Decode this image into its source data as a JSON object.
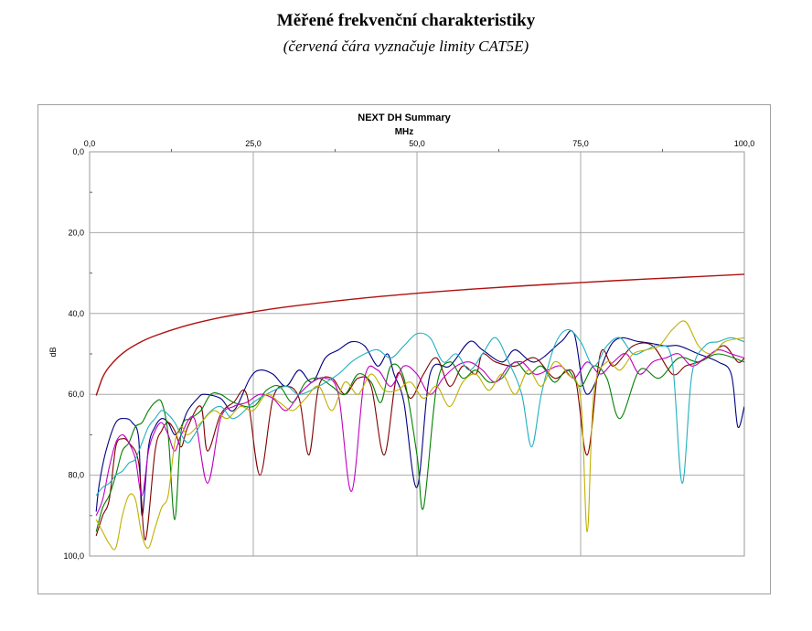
{
  "document": {
    "title": "Měřené frekvenční charakteristiky",
    "subtitle": "(červená čára vyznačuje limity CAT5E)"
  },
  "chart_data": {
    "type": "line",
    "title": "NEXT DH Summary",
    "xlabel": "MHz",
    "ylabel": "dB",
    "xlim": [
      0,
      100
    ],
    "ylim": [
      0,
      100
    ],
    "y_inverted": true,
    "x_axis_position": "top",
    "grid": true,
    "legend": "none",
    "x_ticks": [
      "0,0",
      "25,0",
      "50,0",
      "75,0",
      "100,0"
    ],
    "y_ticks": [
      "0,0",
      "20,0",
      "40,0",
      "60,0",
      "80,0",
      "100,0"
    ],
    "limit_line": {
      "color": "#b01010",
      "x": [
        1,
        2,
        3,
        5,
        7.5,
        10,
        15,
        20,
        25,
        30,
        40,
        50,
        60,
        70,
        80,
        90,
        100
      ],
      "y": [
        60.3,
        55.8,
        53.2,
        49.9,
        47.3,
        45.5,
        42.9,
        41.0,
        39.6,
        38.4,
        36.5,
        35.0,
        33.8,
        32.8,
        31.9,
        31.1,
        30.3
      ]
    },
    "series": [
      {
        "color": "#000080",
        "x": [
          1,
          1.5,
          2.5,
          4,
          5.5,
          6.5,
          7.5,
          8,
          9,
          10,
          11,
          12,
          13,
          14,
          15,
          16.5,
          17.5,
          20,
          22,
          24.5,
          26,
          28,
          30,
          32,
          34,
          36,
          38,
          40,
          42,
          44,
          45.5,
          46.5,
          48,
          50,
          52,
          55,
          58,
          60,
          63,
          65,
          68,
          72,
          74,
          76,
          80,
          84,
          88,
          90,
          93,
          96,
          98,
          99,
          100
        ],
        "y": [
          89,
          82,
          74,
          67,
          66,
          67,
          71,
          90,
          73,
          68,
          66,
          67,
          70,
          68,
          64,
          61,
          60,
          61,
          64,
          56,
          54,
          55,
          58,
          54,
          57,
          51,
          49,
          47,
          48,
          53,
          50,
          55,
          62,
          83,
          55,
          53,
          47,
          49,
          52,
          49,
          52,
          47,
          45,
          60,
          47,
          47,
          48,
          48,
          50,
          52,
          55,
          68,
          63
        ]
      },
      {
        "color": "#800000",
        "x": [
          1,
          2,
          3,
          4,
          5,
          6,
          7.5,
          8.5,
          10,
          11,
          12,
          13,
          14,
          15,
          17,
          18,
          20,
          22,
          24,
          26,
          28,
          30,
          32,
          33.5,
          35,
          37,
          39,
          41,
          43,
          45,
          47,
          49,
          51,
          53,
          55,
          57,
          59,
          60,
          62,
          65,
          68,
          71,
          74,
          76,
          78,
          80,
          83,
          86,
          89,
          91,
          93,
          95,
          97,
          99,
          100
        ],
        "y": [
          95,
          90,
          86,
          73,
          71,
          72,
          77,
          96,
          74,
          69,
          67,
          69,
          73,
          68,
          63,
          74,
          65,
          62,
          60,
          80,
          61,
          58,
          61,
          75,
          58,
          56,
          60,
          56,
          58,
          75,
          55,
          61,
          55,
          51,
          58,
          53,
          55,
          50,
          52,
          53,
          51,
          56,
          55,
          75,
          50,
          53,
          48,
          48,
          55,
          53,
          52,
          50,
          48,
          52,
          51
        ]
      },
      {
        "color": "#008000",
        "x": [
          1,
          2,
          3,
          4,
          5,
          6,
          7,
          8,
          9,
          10,
          11,
          12,
          13,
          14,
          15.5,
          17,
          18.5,
          20,
          22,
          25,
          27,
          29,
          31,
          33,
          35,
          37,
          39,
          41,
          43,
          44.5,
          46,
          48,
          50,
          51,
          53,
          55,
          57,
          59,
          61,
          63,
          65,
          67,
          69,
          71,
          73,
          75,
          77,
          79,
          81,
          84,
          87,
          90,
          93,
          96,
          100
        ],
        "y": [
          94,
          88,
          85,
          80,
          74,
          72,
          68,
          67,
          64,
          62,
          62,
          70,
          91,
          69,
          66,
          64,
          60,
          60,
          62,
          63,
          59,
          58,
          62,
          57,
          56,
          58,
          60,
          55,
          57,
          62,
          53,
          56,
          75,
          88,
          58,
          52,
          56,
          54,
          57,
          56,
          52,
          55,
          53,
          57,
          54,
          58,
          53,
          56,
          66,
          54,
          56,
          51,
          52,
          50,
          52
        ]
      },
      {
        "color": "#c000c0",
        "x": [
          1,
          2,
          3,
          4,
          5,
          6,
          7,
          8,
          9,
          10,
          11,
          12,
          13,
          14,
          16,
          18,
          20,
          22,
          24,
          26,
          28,
          30,
          32,
          34,
          36,
          38,
          40,
          42,
          44,
          46,
          48,
          50,
          52,
          54,
          56,
          58,
          60,
          62,
          64,
          66,
          68,
          70,
          72,
          74,
          76,
          78,
          80,
          82,
          84,
          86,
          88,
          90,
          92,
          94,
          96,
          98,
          100
        ],
        "y": [
          90,
          86,
          78,
          72,
          70,
          72,
          76,
          85,
          74,
          69,
          67,
          70,
          74,
          70,
          66,
          82,
          66,
          63,
          62,
          60,
          61,
          64,
          60,
          57,
          56,
          60,
          84,
          56,
          54,
          58,
          53,
          55,
          60,
          56,
          53,
          52,
          54,
          57,
          53,
          52,
          55,
          54,
          53,
          56,
          52,
          55,
          52,
          50,
          55,
          52,
          51,
          50,
          53,
          51,
          49,
          50,
          51
        ]
      },
      {
        "color": "#20b0c0",
        "x": [
          1,
          2,
          3,
          4,
          5,
          6,
          7,
          8,
          9,
          10,
          11,
          12,
          13,
          14,
          15,
          16,
          18,
          20,
          22,
          25,
          27,
          30,
          32,
          35,
          38,
          40,
          42,
          44,
          46,
          48,
          50,
          52,
          54,
          56,
          58,
          60,
          62,
          64,
          66,
          67.5,
          69,
          71,
          73,
          75,
          77,
          79,
          81,
          83,
          85,
          87,
          89,
          90.5,
          92,
          94,
          96,
          98,
          100
        ],
        "y": [
          85,
          83,
          82,
          80,
          79,
          77,
          76,
          72,
          68,
          66,
          64,
          65,
          67,
          70,
          72,
          70,
          65,
          63,
          66,
          62,
          60,
          58,
          60,
          58,
          55,
          52,
          50,
          49,
          51,
          48,
          45,
          46,
          52,
          50,
          54,
          50,
          46,
          52,
          60,
          73,
          60,
          48,
          44,
          47,
          53,
          48,
          46,
          50,
          49,
          48,
          52,
          82,
          55,
          48,
          47,
          46,
          47
        ]
      },
      {
        "color": "#c0b000",
        "x": [
          1,
          2,
          3,
          4,
          5,
          6,
          7,
          8,
          9,
          10,
          11,
          12,
          13,
          14,
          15,
          17,
          19,
          21,
          23,
          25,
          27,
          29,
          31,
          33,
          35,
          37,
          39,
          41,
          43,
          45,
          47,
          49,
          51,
          53,
          55,
          57,
          59,
          61,
          63,
          65,
          67,
          69,
          71,
          73,
          75,
          76,
          77,
          79,
          81,
          83,
          85,
          87,
          89,
          91,
          93,
          95,
          97,
          100
        ],
        "y": [
          91,
          94,
          97,
          98,
          90,
          85,
          86,
          95,
          98,
          93,
          88,
          85,
          72,
          68,
          70,
          67,
          64,
          66,
          63,
          64,
          60,
          62,
          64,
          61,
          58,
          64,
          57,
          60,
          55,
          59,
          59,
          57,
          61,
          58,
          63,
          57,
          55,
          59,
          55,
          60,
          54,
          58,
          52,
          55,
          61,
          94,
          60,
          52,
          54,
          50,
          49,
          48,
          44,
          42,
          48,
          50,
          47,
          46
        ]
      }
    ]
  }
}
